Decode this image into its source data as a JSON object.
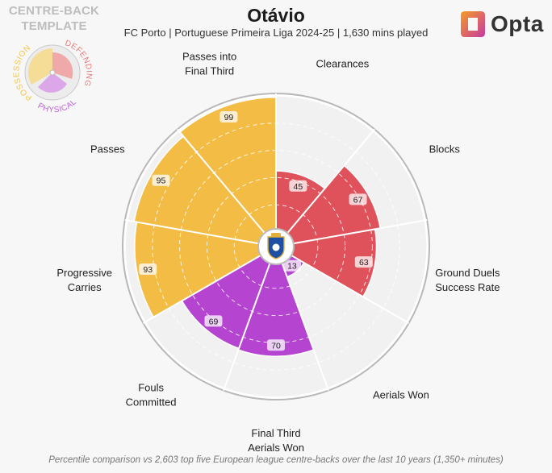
{
  "header": {
    "title": "Otávio",
    "subtitle": "FC Porto | Portuguese Primeira Liga 2024-25 | 1,630 mins played"
  },
  "template": {
    "line1": "CENTRE-BACK",
    "line2": "TEMPLATE",
    "groups": [
      {
        "name": "POSSESSION",
        "color": "#f3d37a"
      },
      {
        "name": "DEFENDING",
        "color": "#ee9a9a"
      },
      {
        "name": "PHYSICAL",
        "color": "#d28ae6"
      }
    ]
  },
  "brand": {
    "name": "Opta",
    "colors": [
      "#f59a23",
      "#c63aa3"
    ]
  },
  "footnote": "Percentile comparison vs 2,603 top five European league centre-backs over the last 10 years (1,350+ minutes)",
  "chart_data": {
    "type": "polar-bar",
    "scale_max": 100,
    "segments": [
      {
        "label": [
          "Clearances"
        ],
        "value": 45,
        "group": "DEFENDING"
      },
      {
        "label": [
          "Blocks"
        ],
        "value": 67,
        "group": "DEFENDING"
      },
      {
        "label": [
          "Ground Duels",
          "Success Rate"
        ],
        "value": 63,
        "group": "DEFENDING"
      },
      {
        "label": [
          "Aerials Won"
        ],
        "value": 13,
        "group": "PHYSICAL"
      },
      {
        "label": [
          "Final Third",
          "Aerials Won"
        ],
        "value": 70,
        "group": "PHYSICAL"
      },
      {
        "label": [
          "Fouls",
          "Committed"
        ],
        "value": 69,
        "group": "PHYSICAL"
      },
      {
        "label": [
          "Progressive",
          "Carries"
        ],
        "value": 93,
        "group": "POSSESSION"
      },
      {
        "label": [
          "Passes"
        ],
        "value": 95,
        "group": "POSSESSION"
      },
      {
        "label": [
          "Passes into",
          "Final Third"
        ],
        "value": 99,
        "group": "POSSESSION"
      }
    ],
    "group_colors": {
      "DEFENDING": "#e0525b",
      "PHYSICAL": "#b544d1",
      "POSSESSION": "#f2bc45"
    }
  }
}
